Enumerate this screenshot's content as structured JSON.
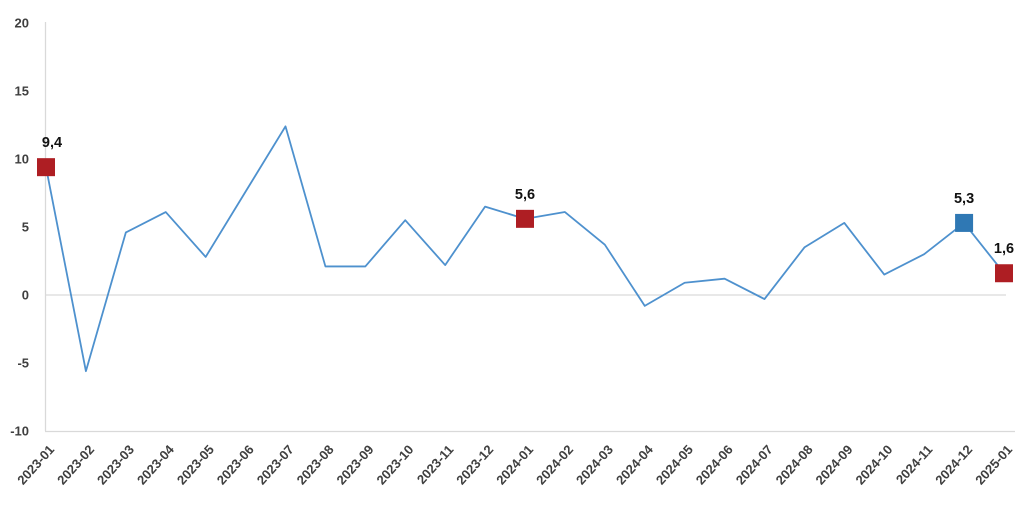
{
  "chart_data": {
    "type": "line",
    "title": "",
    "xlabel": "",
    "ylabel": "",
    "legend": "none",
    "grid": {
      "zero_line": true,
      "other_gridlines": false
    },
    "ylim": [
      -10,
      20
    ],
    "yticks": [
      20,
      15,
      10,
      5,
      0,
      -5,
      -10
    ],
    "x_categories": [
      "2023-01",
      "2023-02",
      "2023-03",
      "2023-04",
      "2023-05",
      "2023-06",
      "2023-07",
      "2023-08",
      "2023-09",
      "2023-10",
      "2023-11",
      "2023-12",
      "2024-01",
      "2024-02",
      "2024-03",
      "2024-04",
      "2024-05",
      "2024-06",
      "2024-07",
      "2024-08",
      "2024-09",
      "2024-10",
      "2024-11",
      "2024-12",
      "2025-01"
    ],
    "series": [
      {
        "color": "#4e91ce",
        "values": [
          9.4,
          -5.6,
          4.6,
          6.1,
          2.8,
          7.6,
          12.4,
          2.1,
          2.1,
          5.5,
          2.2,
          6.5,
          5.6,
          6.1,
          3.7,
          -0.8,
          0.9,
          1.2,
          -0.3,
          3.5,
          5.3,
          1.5,
          3.0,
          5.3,
          1.6
        ]
      }
    ],
    "highlighted_points": [
      {
        "category": "2023-01",
        "value": 9.4,
        "label": "9,4",
        "marker": "square",
        "color": "#ae1e23"
      },
      {
        "category": "2024-01",
        "value": 5.6,
        "label": "5,6",
        "marker": "square",
        "color": "#ae1e23"
      },
      {
        "category": "2024-12",
        "value": 5.3,
        "label": "5,3",
        "marker": "square",
        "color": "#2f78b4"
      },
      {
        "category": "2025-01",
        "value": 1.6,
        "label": "1,6",
        "marker": "square",
        "color": "#ae1e23"
      }
    ],
    "decimal_separator": ",",
    "colors": {
      "axis": "#d9d9d9",
      "tick_text": "#3f3f3f",
      "data_label_text": "#111111"
    }
  }
}
